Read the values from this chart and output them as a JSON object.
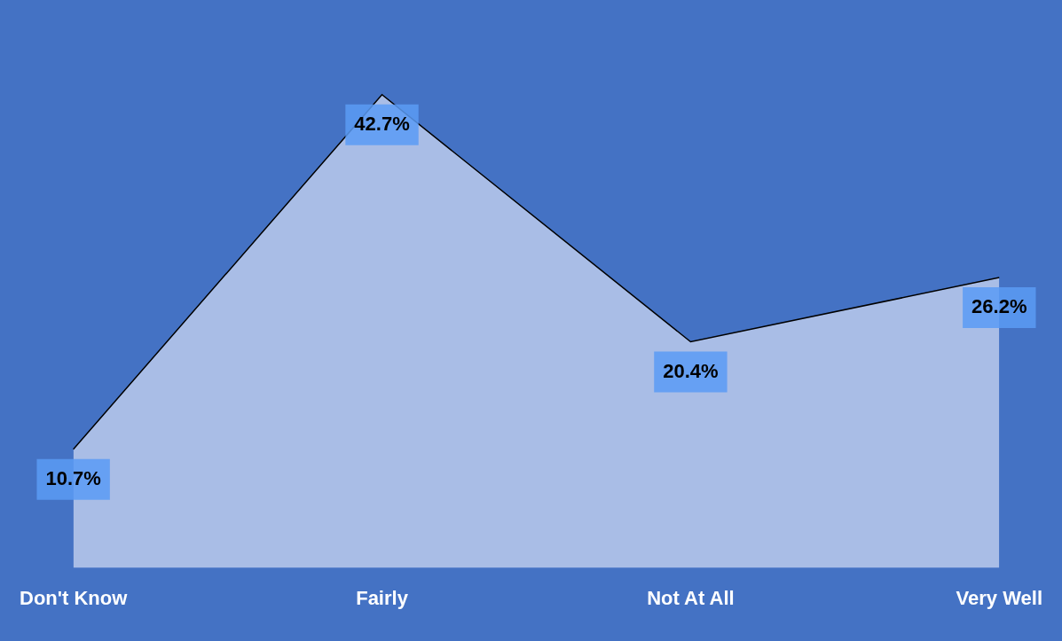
{
  "chart_data": {
    "type": "area",
    "categories": [
      "Don't Know",
      "Fairly",
      "Not At All",
      "Very Well"
    ],
    "series": [
      {
        "color": "#a9bde6",
        "values": [
          10.7,
          42.7,
          20.4,
          26.2
        ],
        "value_labels": [
          "10.7%",
          "42.7%",
          "20.4%",
          "26.2%"
        ]
      }
    ],
    "legend": false,
    "grid": false
  }
}
